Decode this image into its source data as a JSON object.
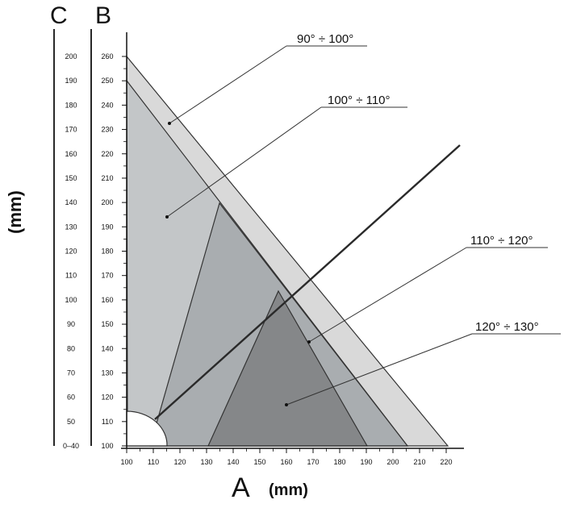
{
  "axes": {
    "c_letter": "C",
    "b_letter": "B",
    "a_letter": "A",
    "unit_vertical": "(mm)",
    "unit_horizontal": "(mm)",
    "c_ticks": [
      "0–40",
      "50",
      "60",
      "70",
      "80",
      "90",
      "100",
      "110",
      "120",
      "130",
      "140",
      "150",
      "160",
      "170",
      "180",
      "190",
      "200"
    ],
    "b_ticks": [
      "100",
      "110",
      "120",
      "130",
      "140",
      "150",
      "160",
      "170",
      "180",
      "190",
      "200",
      "210",
      "220",
      "230",
      "240",
      "250",
      "260"
    ],
    "a_ticks": [
      "100",
      "110",
      "120",
      "130",
      "140",
      "150",
      "160",
      "170",
      "180",
      "190",
      "200",
      "210",
      "220"
    ]
  },
  "zones": [
    {
      "label": "90° ÷ 100°",
      "color": "#d9d9d9"
    },
    {
      "label": "100° ÷ 110°",
      "color": "#c3c6c8"
    },
    {
      "label": "110° ÷ 120°",
      "color": "#a9adb0"
    },
    {
      "label": "120° ÷ 130°",
      "color": "#858789"
    }
  ]
}
